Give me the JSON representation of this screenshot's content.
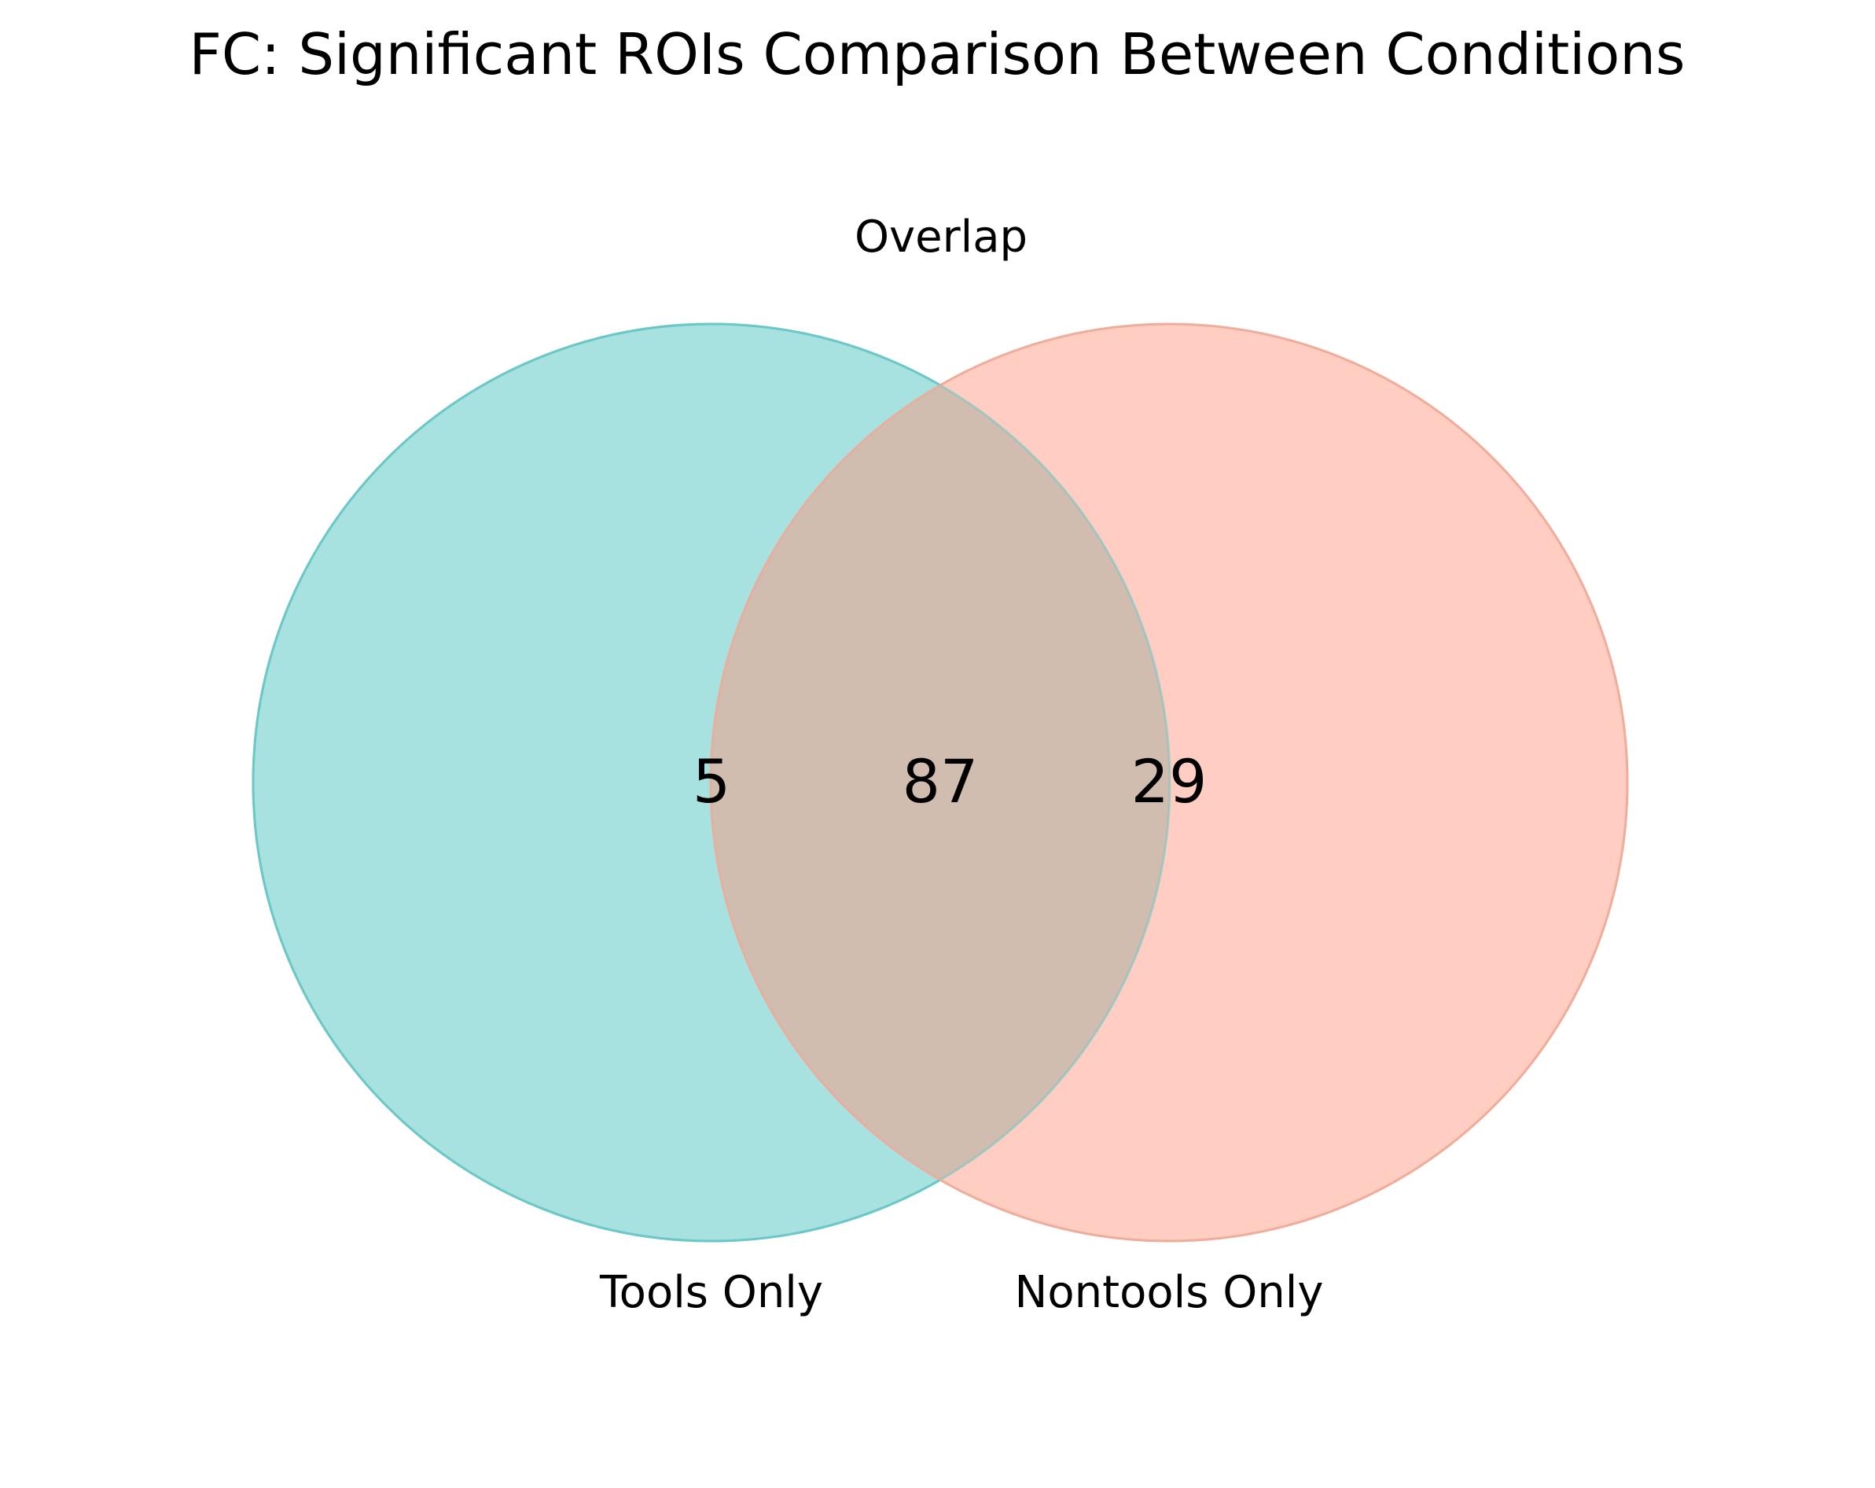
{
  "title": "FC: Significant ROIs Comparison Between Conditions",
  "sets": {
    "left": {
      "name": "Tools Only",
      "count": "5",
      "color": "#4ec3c1"
    },
    "right": {
      "name": "Nontools Only",
      "count": "29",
      "color": "#fe9b82"
    },
    "overlap": {
      "name": "Overlap",
      "count": "87",
      "color": "#d1bcb0"
    }
  }
}
